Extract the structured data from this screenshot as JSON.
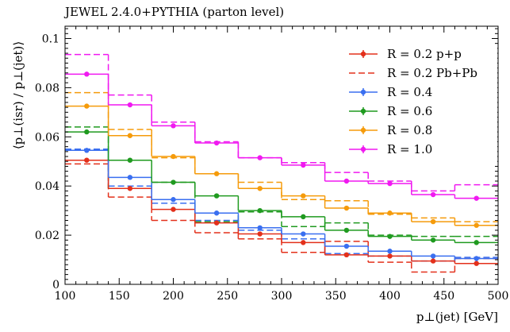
{
  "chart_data": {
    "type": "line",
    "title": "JEWEL 2.4.0+PYTHIA (parton level)",
    "xlabel": "p⊥(jet) [GeV]",
    "ylabel": "⟨p⊥(isr) / p⊥(jet)⟩",
    "xlim": [
      100,
      500
    ],
    "ylim": [
      0,
      0.105
    ],
    "x_ticks": [
      100,
      150,
      200,
      250,
      300,
      350,
      400,
      450,
      500
    ],
    "y_ticks": [
      0,
      0.02,
      0.04,
      0.06,
      0.08,
      0.1
    ],
    "y_tick_labels": [
      "0",
      "0.02",
      "0.04",
      "0.06",
      "0.08",
      "0.1"
    ],
    "bin_edges": [
      100,
      140,
      180,
      220,
      260,
      300,
      340,
      380,
      420,
      460,
      500
    ],
    "legend_position": "top-right",
    "series": [
      {
        "name": "R = 0.2 p+p",
        "style": "solid-marker",
        "color": "#e3301b",
        "values": [
          0.0505,
          0.039,
          0.0305,
          0.025,
          0.0205,
          0.017,
          0.012,
          0.0115,
          0.0095,
          0.0085
        ]
      },
      {
        "name": "R = 0.2 Pb+Pb",
        "style": "dashed",
        "color": "#e3301b",
        "values": [
          0.049,
          0.0355,
          0.026,
          0.021,
          0.0185,
          0.013,
          0.0175,
          0.009,
          0.005,
          0.0105
        ]
      },
      {
        "name": "R = 0.4",
        "style": "solid-marker",
        "color": "#3a6ff0",
        "values": [
          0.0545,
          0.0435,
          0.0345,
          0.029,
          0.023,
          0.0205,
          0.0155,
          0.0135,
          0.0115,
          0.0105
        ]
      },
      {
        "name": "R = 0.6",
        "style": "solid-marker",
        "color": "#1f9a1f",
        "values": [
          0.062,
          0.0505,
          0.0415,
          0.036,
          0.03,
          0.0275,
          0.022,
          0.0195,
          0.018,
          0.017
        ]
      },
      {
        "name": "R = 0.8",
        "style": "solid-marker",
        "color": "#f59b0b",
        "values": [
          0.0725,
          0.0605,
          0.052,
          0.045,
          0.039,
          0.036,
          0.031,
          0.029,
          0.0255,
          0.024
        ]
      },
      {
        "name": "R = 1.0",
        "style": "solid-marker",
        "color": "#f019f0",
        "values": [
          0.0855,
          0.073,
          0.0645,
          0.0575,
          0.0515,
          0.0485,
          0.042,
          0.041,
          0.0365,
          0.035
        ]
      },
      {
        "style": "dashed",
        "color": "#3a6ff0",
        "values": [
          0.055,
          0.04,
          0.033,
          0.026,
          0.022,
          0.0185,
          0.0125,
          0.0115,
          0.0095,
          0.011
        ]
      },
      {
        "style": "dashed",
        "color": "#1f9a1f",
        "values": [
          0.064,
          0.039,
          0.0415,
          0.0255,
          0.0295,
          0.0235,
          0.025,
          0.02,
          0.0195,
          0.0195
        ]
      },
      {
        "style": "dashed",
        "color": "#f59b0b",
        "values": [
          0.078,
          0.063,
          0.0515,
          0.045,
          0.0415,
          0.0345,
          0.034,
          0.0285,
          0.027,
          0.0255
        ]
      },
      {
        "style": "dashed",
        "color": "#f019f0",
        "values": [
          0.0935,
          0.077,
          0.066,
          0.058,
          0.0515,
          0.0495,
          0.0455,
          0.042,
          0.038,
          0.0405
        ]
      }
    ]
  }
}
